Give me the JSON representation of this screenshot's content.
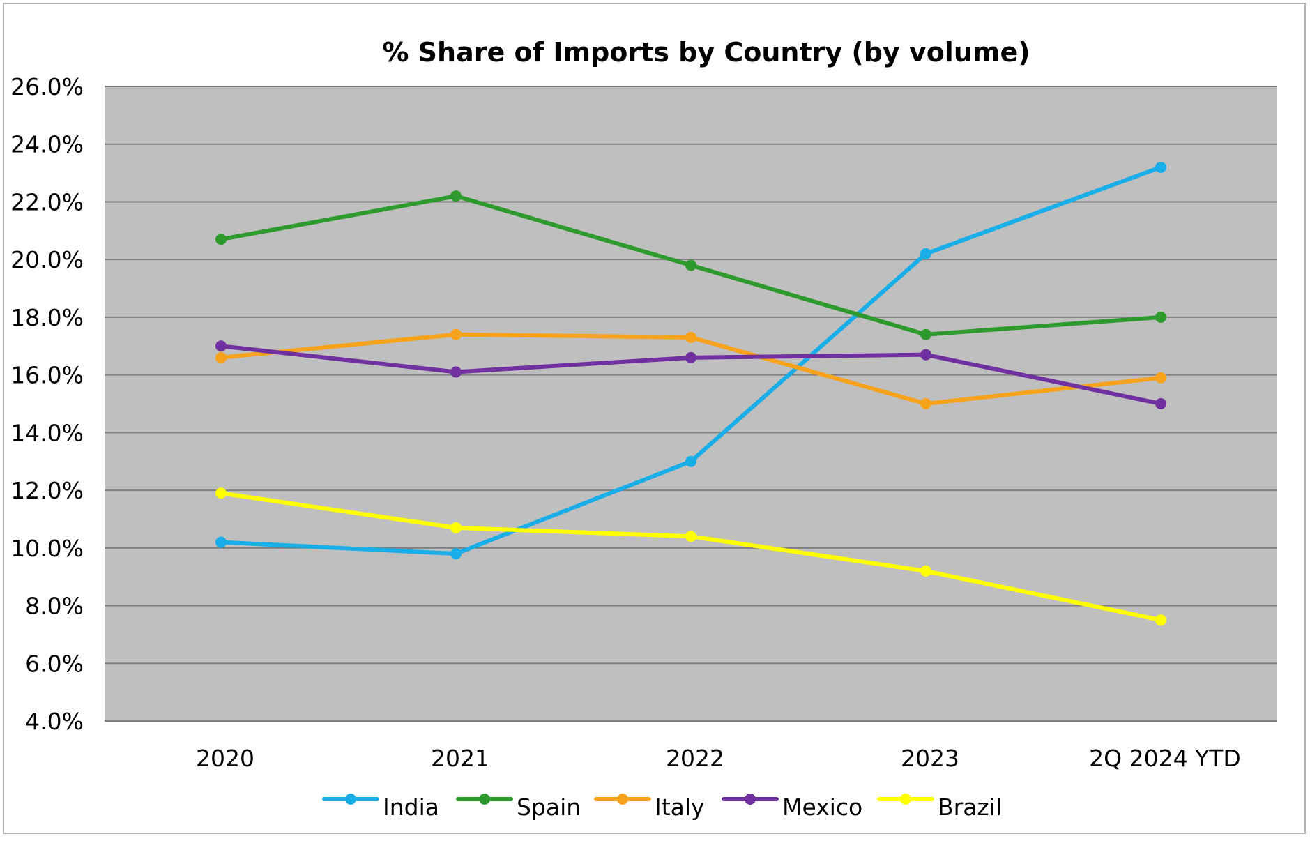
{
  "chart_data": {
    "type": "line",
    "title": "% Share of Imports by Country (by volume)",
    "xlabel": "",
    "ylabel": "",
    "categories": [
      "2020",
      "2021",
      "2022",
      "2023",
      "2Q 2024 YTD"
    ],
    "ylim": [
      4.0,
      26.0
    ],
    "ytick_values": [
      4,
      6,
      8,
      10,
      12,
      14,
      16,
      18,
      20,
      22,
      24,
      26
    ],
    "ytick_labels": [
      "4.0%",
      "6.0%",
      "8.0%",
      "10.0%",
      "12.0%",
      "14.0%",
      "16.0%",
      "18.0%",
      "20.0%",
      "22.0%",
      "24.0%",
      "26.0%"
    ],
    "grid": true,
    "legend_position": "bottom",
    "plot_background": "#bfbfbf",
    "series": [
      {
        "name": "India",
        "color": "#1aaee8",
        "values": [
          10.2,
          9.8,
          13.0,
          20.2,
          23.2
        ]
      },
      {
        "name": "Spain",
        "color": "#2e9a2e",
        "values": [
          20.7,
          22.2,
          19.8,
          17.4,
          18.0
        ]
      },
      {
        "name": "Italy",
        "color": "#f7a21b",
        "values": [
          16.6,
          17.4,
          17.3,
          15.0,
          15.9
        ]
      },
      {
        "name": "Mexico",
        "color": "#7030a0",
        "values": [
          17.0,
          16.1,
          16.6,
          16.7,
          15.0
        ]
      },
      {
        "name": "Brazil",
        "color": "#ffff00",
        "values": [
          11.9,
          10.7,
          10.4,
          9.2,
          7.5
        ]
      }
    ]
  }
}
